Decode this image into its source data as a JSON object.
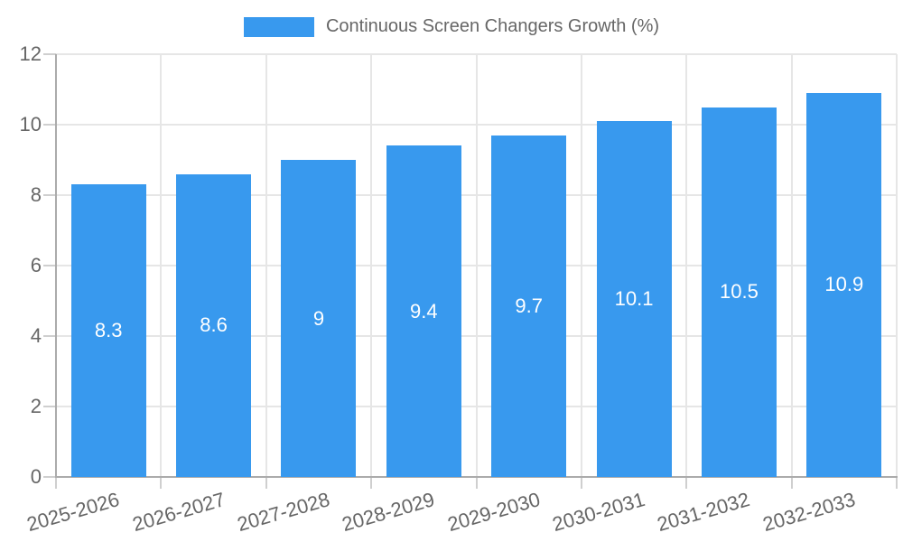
{
  "chart_data": {
    "type": "bar",
    "title": "",
    "legend": "Continuous Screen Changers Growth (%)",
    "legend_position": "top",
    "categories": [
      "2025-2026",
      "2026-2027",
      "2027-2028",
      "2028-2029",
      "2029-2030",
      "2030-2031",
      "2031-2032",
      "2032-2033"
    ],
    "values": [
      8.3,
      8.6,
      9,
      9.4,
      9.7,
      10.1,
      10.5,
      10.9
    ],
    "xlabel": "",
    "ylabel": "",
    "ylim": [
      0,
      12
    ],
    "yticks": [
      0,
      2,
      4,
      6,
      8,
      10,
      12
    ],
    "grid": true,
    "colors": {
      "bar": "#3899EE",
      "bar_label": "#FFFFFF",
      "axis_text": "#666666",
      "grid_line": "#E6E6E6",
      "tick_line": "#CFCFCF",
      "axis_line": "#ABABAB",
      "background": "#FFFFFF"
    }
  }
}
